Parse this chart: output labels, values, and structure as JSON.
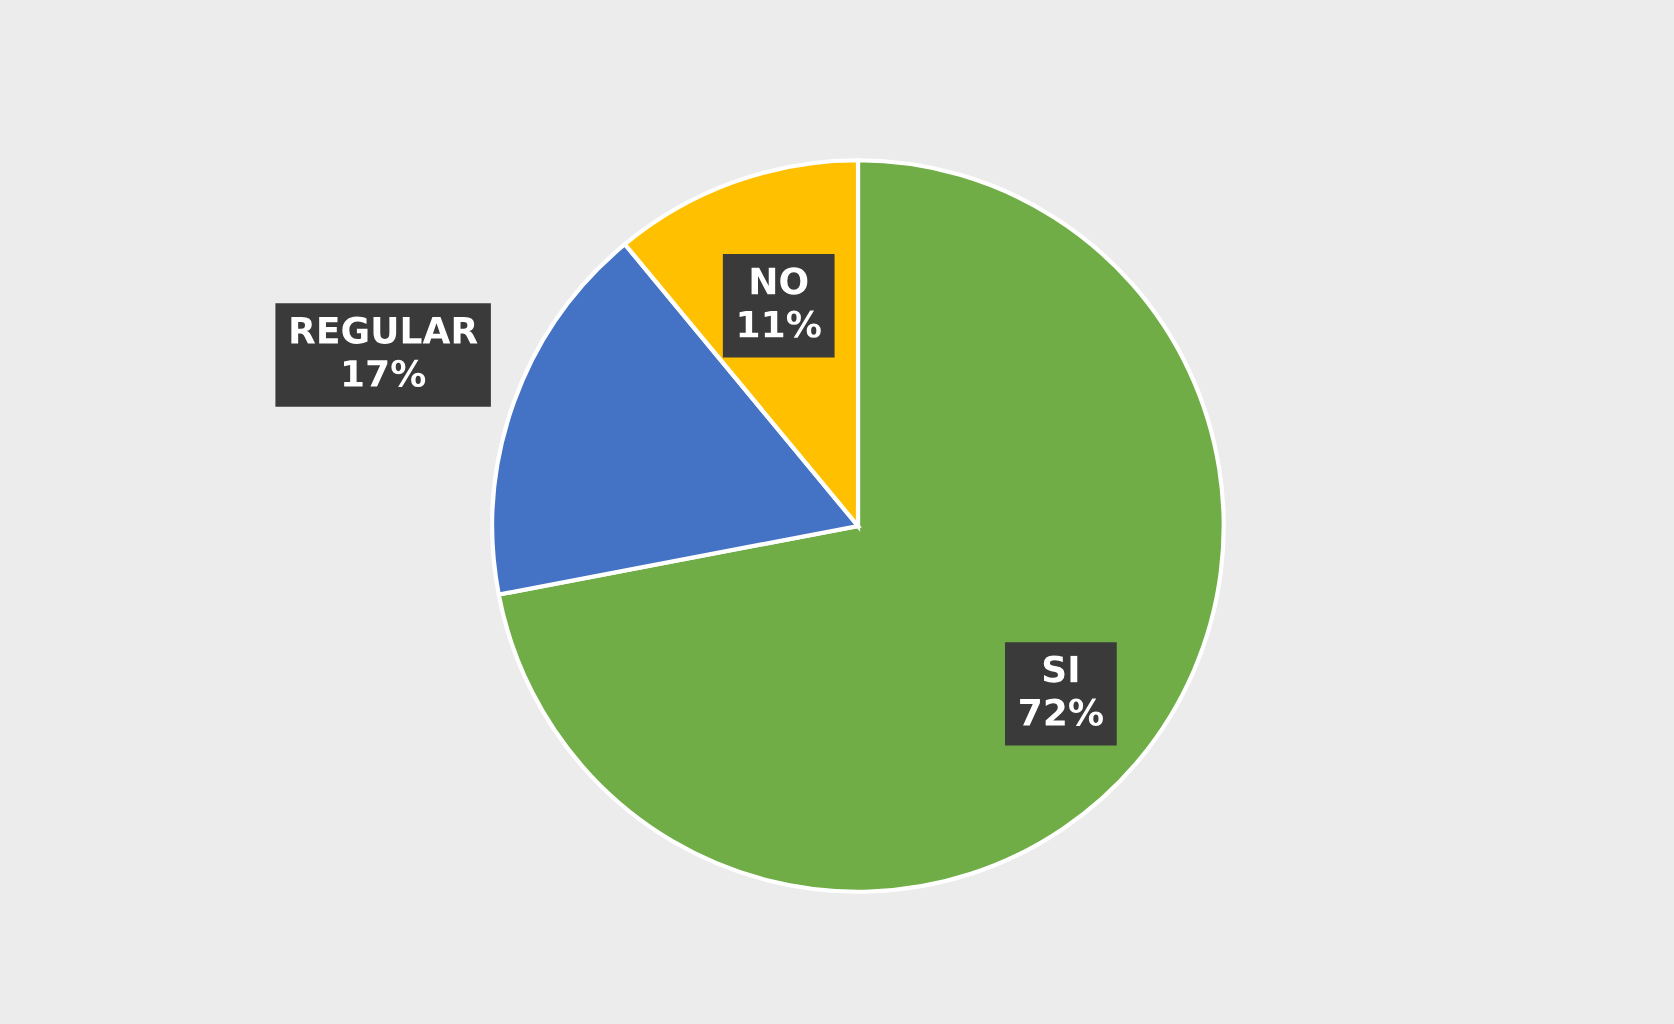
{
  "chart_data": {
    "type": "pie",
    "categories": [
      "SI",
      "REGULAR",
      "NO"
    ],
    "values": [
      72,
      17,
      11
    ],
    "colors": [
      "#70ad47",
      "#4472c4",
      "#ffc000"
    ],
    "value_labels": [
      "72%",
      "17%",
      "11%"
    ]
  }
}
